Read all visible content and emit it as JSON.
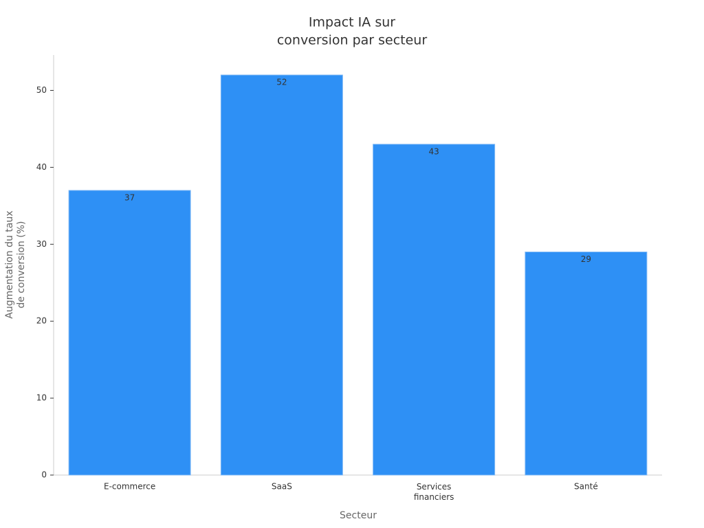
{
  "chart_data": {
    "type": "bar",
    "title": [
      "Impact IA sur",
      "conversion par secteur"
    ],
    "x_label": "Secteur",
    "y_label": [
      "Augmentation du taux",
      "de conversion (%)"
    ],
    "categories": [
      "E-commerce",
      "SaaS",
      "Services financiers",
      "Santé"
    ],
    "values": [
      37,
      52,
      43,
      29
    ],
    "color": "#2e90f5",
    "ylim": [
      0,
      54.6
    ],
    "yticks": [
      0,
      10,
      20,
      30,
      40,
      50
    ],
    "grid": false
  }
}
